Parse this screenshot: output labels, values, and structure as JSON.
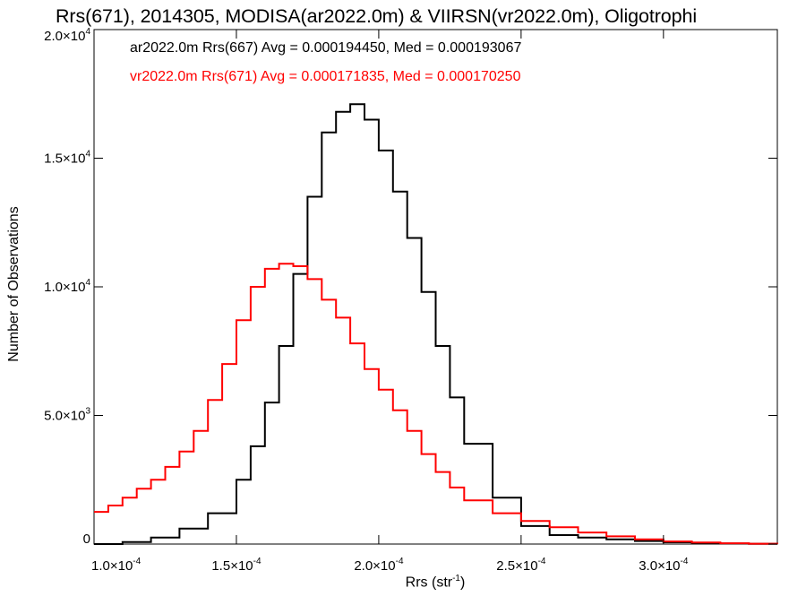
{
  "chart_data": {
    "type": "histogram",
    "title": "Rrs(671), 2014305, MODISA(ar2022.0m) & VIIRSN(vr2022.0m), Oligotrophi",
    "xlabel_text": "Rrs (str",
    "xlabel_exp": "-1",
    "xlabel_close": ")",
    "ylabel": "Number of Observations",
    "xlim": [
      0.0001,
      0.00034
    ],
    "ylim": [
      0,
      20000
    ],
    "x_ticks": [
      {
        "mantissa": "1.0",
        "exp": "-4",
        "value": 0.0001
      },
      {
        "mantissa": "1.5",
        "exp": "-4",
        "value": 0.00015
      },
      {
        "mantissa": "2.0",
        "exp": "-4",
        "value": 0.0002
      },
      {
        "mantissa": "2.5",
        "exp": "-4",
        "value": 0.00025
      },
      {
        "mantissa": "3.0",
        "exp": "-4",
        "value": 0.0003
      }
    ],
    "y_ticks": [
      {
        "mantissa": "0",
        "exp": "",
        "value": 0
      },
      {
        "mantissa": "5.0",
        "exp": "3",
        "value": 5000
      },
      {
        "mantissa": "1.0",
        "exp": "4",
        "value": 10000
      },
      {
        "mantissa": "1.5",
        "exp": "4",
        "value": 15000
      },
      {
        "mantissa": "2.0",
        "exp": "4",
        "value": 20000
      }
    ],
    "stats": [
      {
        "text": "ar2022.0m Rrs(667) Avg = 0.000194450, Med = 0.000193067",
        "color": "#000000"
      },
      {
        "text": "vr2022.0m Rrs(671) Avg = 0.000171835, Med = 0.000170250",
        "color": "#ff0000"
      }
    ],
    "series": [
      {
        "color": "#000000",
        "x": [
          0.0001,
          0.00011,
          0.00012,
          0.00013,
          0.00014,
          0.00015,
          0.000155,
          0.00016,
          0.000165,
          0.00017,
          0.000175,
          0.00018,
          0.000185,
          0.00019,
          0.000195,
          0.0002,
          0.000205,
          0.00021,
          0.000215,
          0.00022,
          0.000225,
          0.00023,
          0.00024,
          0.00025,
          0.00026,
          0.00027,
          0.00028,
          0.00029,
          0.0003,
          0.00031,
          0.00032,
          0.00033,
          0.00034
        ],
        "y": [
          0,
          80,
          250,
          600,
          1200,
          2500,
          3800,
          5500,
          7700,
          10500,
          13500,
          16000,
          16800,
          17100,
          16500,
          15300,
          13700,
          11900,
          9800,
          7700,
          5700,
          3900,
          1800,
          700,
          350,
          250,
          180,
          120,
          70,
          40,
          20,
          10,
          0
        ]
      },
      {
        "color": "#ff0000",
        "x": [
          0.0001,
          0.000105,
          0.00011,
          0.000115,
          0.00012,
          0.000125,
          0.00013,
          0.000135,
          0.00014,
          0.000145,
          0.00015,
          0.000155,
          0.00016,
          0.000165,
          0.00017,
          0.000175,
          0.00018,
          0.000185,
          0.00019,
          0.000195,
          0.0002,
          0.000205,
          0.00021,
          0.000215,
          0.00022,
          0.000225,
          0.00023,
          0.00024,
          0.00025,
          0.00026,
          0.00027,
          0.00028,
          0.00029,
          0.0003,
          0.00031,
          0.00032,
          0.00033,
          0.00034
        ],
        "y": [
          1250,
          1500,
          1800,
          2150,
          2500,
          3000,
          3600,
          4400,
          5600,
          7000,
          8700,
          10000,
          10700,
          10900,
          10800,
          10300,
          9500,
          8800,
          7800,
          6800,
          6000,
          5200,
          4400,
          3500,
          2800,
          2200,
          1700,
          1200,
          900,
          650,
          450,
          300,
          180,
          100,
          60,
          30,
          15,
          0
        ]
      }
    ]
  }
}
